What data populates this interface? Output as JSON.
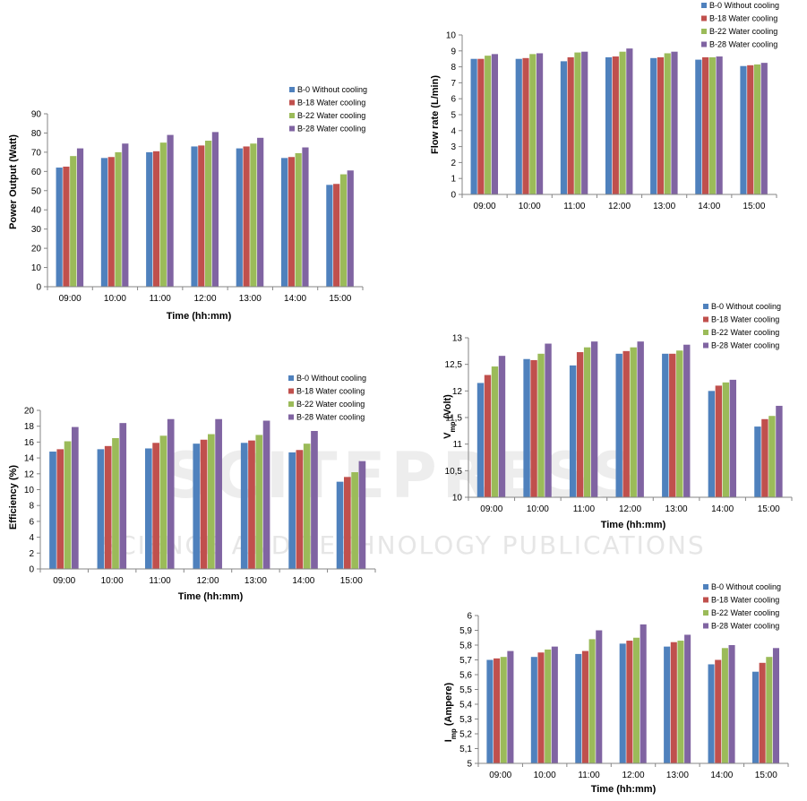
{
  "watermark": {
    "brand": "SCITEPRESS",
    "tagline": "SCIENCE AND TECHNOLOGY PUBLICATIONS"
  },
  "colors": [
    "#4f81bd",
    "#c0504d",
    "#9bbb59",
    "#8064a2"
  ],
  "chart_data": [
    {
      "id": "power",
      "type": "bar",
      "categories": [
        "09:00",
        "10:00",
        "11:00",
        "12:00",
        "13:00",
        "14:00",
        "15:00"
      ],
      "series": [
        {
          "name": "B-0 Without cooling",
          "values": [
            62,
            67,
            70,
            73,
            72,
            67,
            53
          ]
        },
        {
          "name": "B-18 Water cooling",
          "values": [
            62.5,
            67.5,
            70.5,
            73.5,
            73,
            67.5,
            53.5
          ]
        },
        {
          "name": "B-22 Water cooling",
          "values": [
            68,
            70,
            75,
            76,
            74.5,
            69.5,
            58.5
          ]
        },
        {
          "name": "B-28 Water cooling",
          "values": [
            72,
            74.5,
            79,
            80.5,
            77.5,
            72.5,
            60.5
          ]
        }
      ],
      "ylim": [
        0,
        90
      ],
      "yticks": [
        "0",
        "10",
        "20",
        "30",
        "40",
        "50",
        "60",
        "70",
        "80",
        "90"
      ],
      "xlabel": "Time (hh:mm)",
      "ylabel": "Power Output (Watt)",
      "legend": "top-right"
    },
    {
      "id": "flow",
      "type": "bar",
      "categories": [
        "09:00",
        "10:00",
        "11:00",
        "12:00",
        "13:00",
        "14:00",
        "15:00"
      ],
      "series": [
        {
          "name": "B-0 Without cooling",
          "values": [
            8.5,
            8.5,
            8.35,
            8.6,
            8.55,
            8.45,
            8.05
          ]
        },
        {
          "name": "B-18 Water cooling",
          "values": [
            8.5,
            8.55,
            8.6,
            8.65,
            8.6,
            8.6,
            8.1
          ]
        },
        {
          "name": "B-22 Water cooling",
          "values": [
            8.7,
            8.8,
            8.9,
            8.95,
            8.85,
            8.6,
            8.15
          ]
        },
        {
          "name": "B-28 Water cooling",
          "values": [
            8.8,
            8.85,
            8.95,
            9.15,
            8.95,
            8.65,
            8.25
          ]
        }
      ],
      "ylim": [
        0,
        10
      ],
      "yticks": [
        "0",
        "1",
        "2",
        "3",
        "4",
        "5",
        "6",
        "7",
        "8",
        "9",
        "10"
      ],
      "xlabel": "",
      "ylabel": "Flow rate (L/min)",
      "legend": "top-right"
    },
    {
      "id": "efficiency",
      "type": "bar",
      "categories": [
        "09:00",
        "10:00",
        "11:00",
        "12:00",
        "13:00",
        "14:00",
        "15:00"
      ],
      "series": [
        {
          "name": "B-0 Without cooling",
          "values": [
            14.8,
            15.1,
            15.2,
            15.8,
            15.9,
            14.7,
            11.0
          ]
        },
        {
          "name": "B-18 Water cooling",
          "values": [
            15.1,
            15.5,
            15.9,
            16.3,
            16.2,
            15.0,
            11.6
          ]
        },
        {
          "name": "B-22 Water cooling",
          "values": [
            16.1,
            16.5,
            16.8,
            17.0,
            16.9,
            15.8,
            12.2
          ]
        },
        {
          "name": "B-28 Water cooling",
          "values": [
            17.9,
            18.4,
            18.9,
            18.9,
            18.7,
            17.4,
            13.6
          ]
        }
      ],
      "ylim": [
        0,
        20
      ],
      "yticks": [
        "0",
        "2",
        "4",
        "6",
        "8",
        "10",
        "12",
        "14",
        "16",
        "18",
        "20"
      ],
      "xlabel": "Time (hh:mm)",
      "ylabel": "Efficiency (%)",
      "legend": "top-right"
    },
    {
      "id": "vmp",
      "type": "bar",
      "categories": [
        "09:00",
        "10:00",
        "11:00",
        "12:00",
        "13:00",
        "14:00",
        "15:00"
      ],
      "series": [
        {
          "name": "B-0 Without cooling",
          "values": [
            12.15,
            12.6,
            12.48,
            12.7,
            12.7,
            12.0,
            11.33
          ]
        },
        {
          "name": "B-18 Water cooling",
          "values": [
            12.3,
            12.58,
            12.73,
            12.75,
            12.7,
            12.1,
            11.47
          ]
        },
        {
          "name": "B-22 Water cooling",
          "values": [
            12.46,
            12.7,
            12.82,
            12.82,
            12.76,
            12.16,
            11.53
          ]
        },
        {
          "name": "B-28 Water cooling",
          "values": [
            12.66,
            12.89,
            12.93,
            12.93,
            12.87,
            12.21,
            11.72
          ]
        }
      ],
      "ylim": [
        10,
        13
      ],
      "yticks": [
        "10",
        "10,5",
        "11",
        "11,5",
        "12",
        "12,5",
        "13"
      ],
      "xlabel": "Time (hh:mm)",
      "ylabel": "V",
      "ylabel_sub": "mp",
      "ylabel_unit": " (Volt)",
      "legend": "top-right"
    },
    {
      "id": "imp",
      "type": "bar",
      "categories": [
        "09:00",
        "10:00",
        "11:00",
        "12:00",
        "13:00",
        "14:00",
        "15:00"
      ],
      "series": [
        {
          "name": "B-0 Without cooling",
          "values": [
            5.7,
            5.72,
            5.74,
            5.81,
            5.79,
            5.67,
            5.62
          ]
        },
        {
          "name": "B-18 Water cooling",
          "values": [
            5.71,
            5.75,
            5.76,
            5.83,
            5.82,
            5.7,
            5.68
          ]
        },
        {
          "name": "B-22 Water cooling",
          "values": [
            5.72,
            5.77,
            5.84,
            5.85,
            5.83,
            5.78,
            5.72
          ]
        },
        {
          "name": "B-28 Water cooling",
          "values": [
            5.76,
            5.79,
            5.9,
            5.94,
            5.87,
            5.8,
            5.78
          ]
        }
      ],
      "ylim": [
        5,
        6
      ],
      "yticks": [
        "5",
        "5,1",
        "5,2",
        "5,3",
        "5,4",
        "5,5",
        "5,6",
        "5,7",
        "5,8",
        "5,9",
        "6"
      ],
      "xlabel": "Time (hh:mm)",
      "ylabel": "I",
      "ylabel_sub": "mp",
      "ylabel_unit": " (Ampere)",
      "legend": "top-right"
    }
  ]
}
